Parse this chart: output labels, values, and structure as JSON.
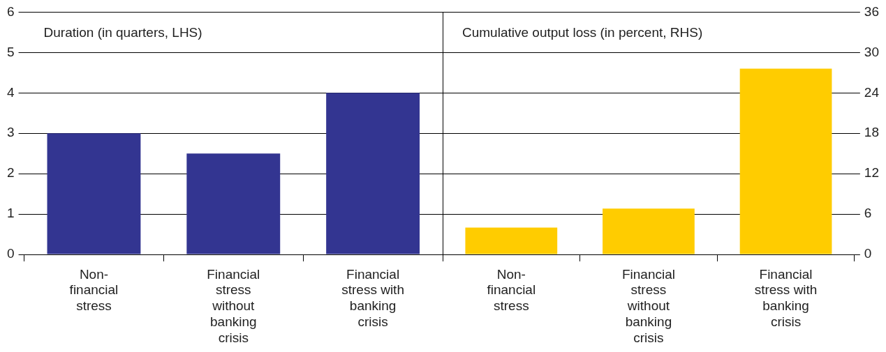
{
  "chart_data": [
    {
      "type": "bar",
      "categories": [
        "Non-financial stress",
        "Financial stress without banking crisis",
        "Financial stress with banking crisis"
      ],
      "series": [
        {
          "name": "Duration (in quarters, LHS)",
          "color": "#333591",
          "values": [
            3,
            2.5,
            4
          ]
        }
      ],
      "ylim": [
        0,
        6
      ],
      "yticks": [
        0,
        1,
        2,
        3,
        4,
        5,
        6
      ],
      "grid": "y"
    },
    {
      "type": "bar",
      "categories": [
        "Non-financial stress",
        "Financial stress without banking crisis",
        "Financial stress with banking crisis"
      ],
      "series": [
        {
          "name": "Cumulative output loss (in percent, RHS)",
          "color": "#ffcc00",
          "values": [
            4,
            6.8,
            27.6
          ],
          "axis": "y2"
        }
      ],
      "y2lim": [
        0,
        36
      ],
      "y2ticks": [
        0,
        6,
        12,
        18,
        24,
        30,
        36
      ],
      "grid": "y"
    }
  ]
}
